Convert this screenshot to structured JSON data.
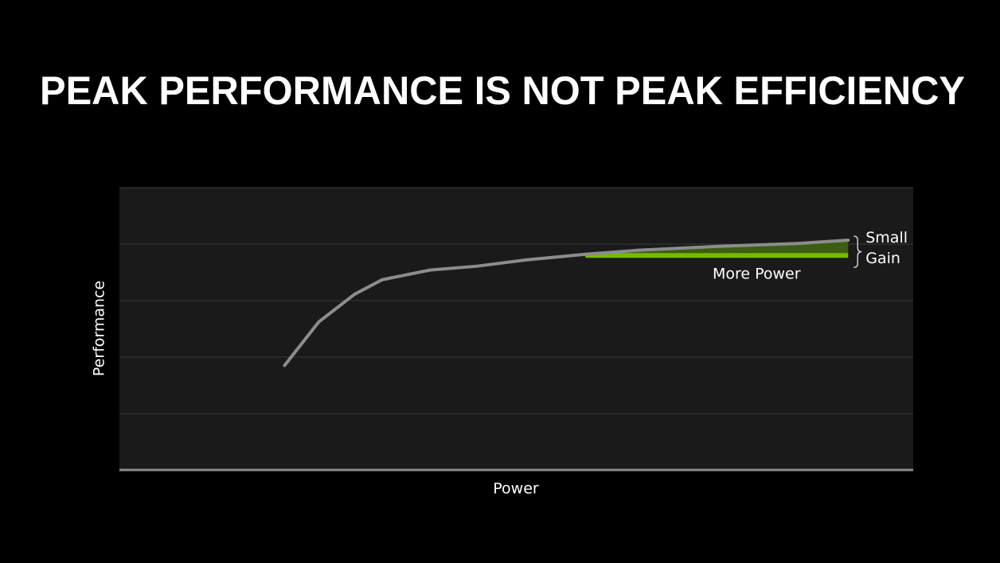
{
  "chart_data": {
    "type": "line",
    "title": "PEAK PERFORMANCE IS NOT PEAK EFFICIENCY",
    "x_label": "Power",
    "y_label": "Performance",
    "xlim": [
      0,
      100
    ],
    "ylim": [
      0,
      5
    ],
    "yticks": [
      0,
      1,
      2,
      3,
      4,
      5
    ],
    "grid": true,
    "tick_labels": false,
    "series": [
      {
        "color": "#8c8c8c",
        "x": [
          20.8,
          25.1,
          29.6,
          33.1,
          39.1,
          45.1,
          51.2,
          58.7,
          65.2,
          75.2,
          85.3,
          91.8
        ],
        "values": [
          1.85,
          2.62,
          3.11,
          3.37,
          3.54,
          3.61,
          3.72,
          3.82,
          3.89,
          3.96,
          4.01,
          4.07
        ]
      }
    ],
    "more_power": {
      "label": "More Power",
      "x": [
        58.7,
        91.8
      ],
      "y": 3.8,
      "color": "#76b900",
      "fill": "#3d5e12"
    },
    "small_gain": {
      "label": [
        "Small",
        "Gain"
      ]
    }
  }
}
